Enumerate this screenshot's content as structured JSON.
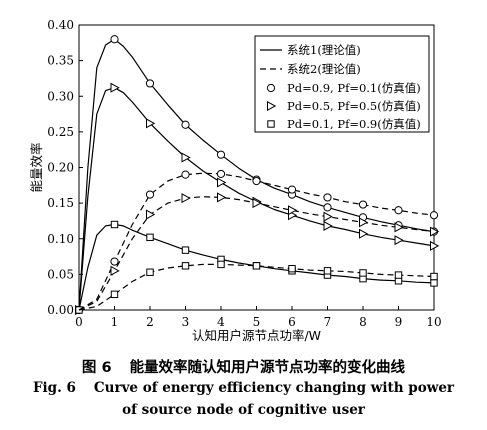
{
  "chart_data": {
    "type": "line",
    "xlabel": "认知用户源节点功率/W",
    "ylabel": "能量效率",
    "xlim": [
      0,
      10
    ],
    "ylim": [
      0,
      0.4
    ],
    "x_ticks": [
      "0",
      "1",
      "2",
      "3",
      "4",
      "5",
      "6",
      "7",
      "8",
      "9",
      "10"
    ],
    "y_ticks": [
      "0.00",
      "0.05",
      "0.10",
      "0.15",
      "0.20",
      "0.25",
      "0.30",
      "0.35",
      "0.40"
    ],
    "grid": false,
    "legend_position": "top-right",
    "legend": [
      {
        "label": "系统1(理论值)",
        "symbol": "solid-line"
      },
      {
        "label": "系统2(理论值)",
        "symbol": "dashed-line"
      },
      {
        "label": "Pd=0.9, Pf=0.1(仿真值)",
        "symbol": "circle"
      },
      {
        "label": "Pd=0.5, Pf=0.5(仿真值)",
        "symbol": "triangle-right"
      },
      {
        "label": "Pd=0.1, Pf=0.9(仿真值)",
        "symbol": "square"
      }
    ],
    "series": [
      {
        "system": 1,
        "style": "solid",
        "marker": "circle",
        "x": [
          0,
          0.25,
          0.5,
          0.75,
          1,
          1.25,
          1.5,
          2,
          2.5,
          3,
          3.5,
          4,
          4.5,
          5,
          5.5,
          6,
          6.5,
          7,
          7.5,
          8,
          8.5,
          9,
          9.5,
          10
        ],
        "y": [
          0,
          0.2,
          0.34,
          0.372,
          0.38,
          0.37,
          0.355,
          0.318,
          0.288,
          0.26,
          0.238,
          0.218,
          0.199,
          0.183,
          0.171,
          0.162,
          0.152,
          0.144,
          0.137,
          0.13,
          0.124,
          0.119,
          0.114,
          0.11
        ],
        "marker_x": [
          0,
          1,
          2,
          3,
          4,
          5,
          6,
          7,
          8,
          9,
          10
        ],
        "marker_y": [
          0,
          0.38,
          0.318,
          0.26,
          0.218,
          0.183,
          0.162,
          0.144,
          0.13,
          0.119,
          0.11
        ]
      },
      {
        "system": 1,
        "style": "solid",
        "marker": "triangle-right",
        "x": [
          0,
          0.25,
          0.5,
          0.75,
          1,
          1.25,
          1.5,
          2,
          2.5,
          3,
          3.5,
          4,
          4.5,
          5,
          5.5,
          6,
          6.5,
          7,
          7.5,
          8,
          8.5,
          9,
          9.5,
          10
        ],
        "y": [
          0,
          0.16,
          0.275,
          0.308,
          0.312,
          0.305,
          0.292,
          0.262,
          0.237,
          0.214,
          0.195,
          0.179,
          0.164,
          0.152,
          0.141,
          0.133,
          0.125,
          0.118,
          0.113,
          0.107,
          0.102,
          0.098,
          0.094,
          0.09
        ],
        "marker_x": [
          0,
          1,
          2,
          3,
          4,
          5,
          6,
          7,
          8,
          9,
          10
        ],
        "marker_y": [
          0,
          0.312,
          0.262,
          0.214,
          0.179,
          0.152,
          0.133,
          0.118,
          0.107,
          0.098,
          0.09
        ]
      },
      {
        "system": 1,
        "style": "solid",
        "marker": "square",
        "x": [
          0,
          0.25,
          0.5,
          0.75,
          1,
          1.25,
          1.5,
          2,
          2.5,
          3,
          3.5,
          4,
          4.5,
          5,
          5.5,
          6,
          6.5,
          7,
          7.5,
          8,
          8.5,
          9,
          9.5,
          10
        ],
        "y": [
          0,
          0.06,
          0.105,
          0.118,
          0.12,
          0.118,
          0.112,
          0.102,
          0.093,
          0.084,
          0.077,
          0.071,
          0.066,
          0.062,
          0.058,
          0.055,
          0.052,
          0.049,
          0.047,
          0.044,
          0.042,
          0.041,
          0.039,
          0.038
        ],
        "marker_x": [
          0,
          1,
          2,
          3,
          4,
          5,
          6,
          7,
          8,
          9,
          10
        ],
        "marker_y": [
          0,
          0.12,
          0.102,
          0.084,
          0.071,
          0.062,
          0.055,
          0.049,
          0.044,
          0.041,
          0.038
        ]
      },
      {
        "system": 2,
        "style": "dashed",
        "marker": "circle",
        "x": [
          0,
          0.5,
          1,
          1.5,
          2,
          2.5,
          3,
          3.5,
          4,
          4.5,
          5,
          5.5,
          6,
          6.5,
          7,
          7.5,
          8,
          8.5,
          9,
          9.5,
          10
        ],
        "y": [
          0,
          0.015,
          0.068,
          0.12,
          0.162,
          0.181,
          0.19,
          0.192,
          0.191,
          0.187,
          0.181,
          0.175,
          0.169,
          0.163,
          0.158,
          0.152,
          0.148,
          0.143,
          0.14,
          0.136,
          0.133
        ],
        "marker_x": [
          1,
          2,
          3,
          4,
          5,
          6,
          7,
          8,
          9,
          10
        ],
        "marker_y": [
          0.068,
          0.162,
          0.19,
          0.191,
          0.181,
          0.169,
          0.158,
          0.148,
          0.14,
          0.133
        ]
      },
      {
        "system": 2,
        "style": "dashed",
        "marker": "triangle-right",
        "x": [
          0,
          0.5,
          1,
          1.5,
          2,
          2.5,
          3,
          3.5,
          4,
          4.5,
          5,
          5.5,
          6,
          6.5,
          7,
          7.5,
          8,
          8.5,
          9,
          9.5,
          10
        ],
        "y": [
          0,
          0.012,
          0.055,
          0.1,
          0.134,
          0.15,
          0.157,
          0.159,
          0.158,
          0.155,
          0.15,
          0.145,
          0.14,
          0.135,
          0.131,
          0.127,
          0.123,
          0.119,
          0.116,
          0.113,
          0.11
        ],
        "marker_x": [
          1,
          2,
          3,
          4,
          5,
          6,
          7,
          8,
          9,
          10
        ],
        "marker_y": [
          0.055,
          0.134,
          0.157,
          0.158,
          0.15,
          0.14,
          0.131,
          0.123,
          0.116,
          0.11
        ]
      },
      {
        "system": 2,
        "style": "dashed",
        "marker": "square",
        "x": [
          0,
          0.5,
          1,
          1.5,
          2,
          2.5,
          3,
          3.5,
          4,
          4.5,
          5,
          5.5,
          6,
          6.5,
          7,
          7.5,
          8,
          8.5,
          9,
          9.5,
          10
        ],
        "y": [
          0,
          0.005,
          0.022,
          0.04,
          0.053,
          0.059,
          0.062,
          0.064,
          0.064,
          0.063,
          0.062,
          0.06,
          0.058,
          0.056,
          0.055,
          0.054,
          0.052,
          0.05,
          0.049,
          0.048,
          0.047
        ],
        "marker_x": [
          1,
          2,
          3,
          4,
          5,
          6,
          7,
          8,
          9,
          10
        ],
        "marker_y": [
          0.022,
          0.053,
          0.062,
          0.064,
          0.062,
          0.058,
          0.055,
          0.052,
          0.049,
          0.047
        ]
      }
    ]
  },
  "caption": {
    "zh_label": "图 6",
    "zh_text": "能量效率随认知用户源节点功率的变化曲线",
    "en_label": "Fig. 6",
    "en_line1": "Curve of energy efficiency changing with power",
    "en_line2": "of source node of cognitive user"
  }
}
